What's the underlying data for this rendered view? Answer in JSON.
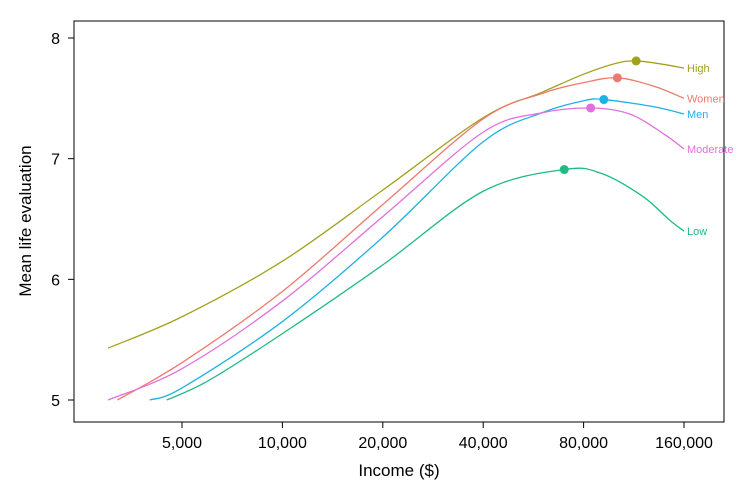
{
  "chart_data": {
    "type": "line",
    "title": "",
    "xlabel": "Income ($)",
    "ylabel": "Mean life evaluation",
    "x_scale": "log",
    "xlim": [
      2500,
      200000
    ],
    "ylim": [
      4.9,
      8.15
    ],
    "x_ticks": [
      5000,
      10000,
      20000,
      40000,
      80000,
      160000
    ],
    "x_tick_labels": [
      "5,000",
      "10,000",
      "20,000",
      "40,000",
      "80,000",
      "160,000"
    ],
    "y_ticks": [
      5,
      6,
      7,
      8
    ],
    "y_tick_labels": [
      "5",
      "6",
      "7",
      "8"
    ],
    "grid": false,
    "legend": "direct labels at right end of each line",
    "series": [
      {
        "name": "High",
        "color": "#a3a21e",
        "peak": [
          115000,
          7.81
        ],
        "x": [
          3000,
          5000,
          10000,
          20000,
          40000,
          60000,
          80000,
          100000,
          115000,
          140000,
          160000
        ],
        "y": [
          5.43,
          5.69,
          6.15,
          6.74,
          7.34,
          7.55,
          7.7,
          7.79,
          7.81,
          7.78,
          7.75
        ]
      },
      {
        "name": "Women",
        "color": "#ec7a6f",
        "peak": [
          101000,
          7.67
        ],
        "x": [
          3200,
          5000,
          10000,
          20000,
          40000,
          60000,
          80000,
          101000,
          130000,
          160000
        ],
        "y": [
          5.0,
          5.31,
          5.9,
          6.62,
          7.33,
          7.54,
          7.63,
          7.67,
          7.6,
          7.5
        ]
      },
      {
        "name": "Men",
        "color": "#1db1e4",
        "peak": [
          92000,
          7.49
        ],
        "x": [
          4000,
          5000,
          10000,
          20000,
          40000,
          60000,
          80000,
          92000,
          130000,
          160000
        ],
        "y": [
          5.0,
          5.1,
          5.65,
          6.35,
          7.14,
          7.38,
          7.48,
          7.49,
          7.43,
          7.37
        ]
      },
      {
        "name": "Moderate",
        "color": "#e36fdc",
        "peak": [
          84000,
          7.42
        ],
        "x": [
          3000,
          5000,
          10000,
          20000,
          40000,
          60000,
          84000,
          110000,
          140000,
          160000
        ],
        "y": [
          5.0,
          5.26,
          5.82,
          6.52,
          7.22,
          7.38,
          7.42,
          7.37,
          7.2,
          7.08
        ]
      },
      {
        "name": "Low",
        "color": "#20ba83",
        "peak": [
          70000,
          6.91
        ],
        "x": [
          4500,
          6000,
          10000,
          20000,
          40000,
          70000,
          90000,
          120000,
          145000,
          160000
        ],
        "y": [
          5.0,
          5.16,
          5.55,
          6.12,
          6.73,
          6.91,
          6.88,
          6.69,
          6.49,
          6.4
        ]
      }
    ]
  }
}
